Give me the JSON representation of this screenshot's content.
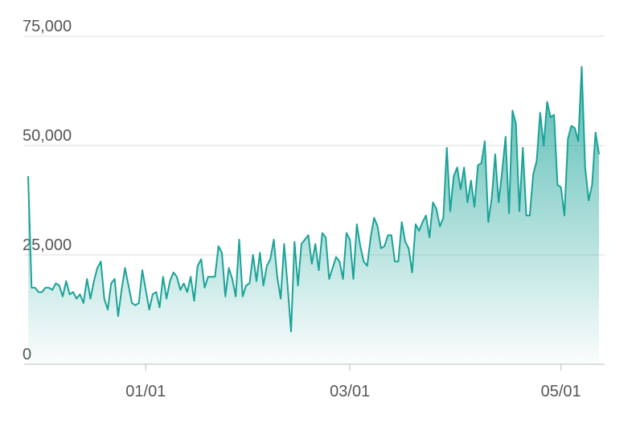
{
  "chart_data": {
    "type": "area",
    "color": "#1aa398",
    "grid": true,
    "categories": [
      null,
      null,
      null,
      null,
      null,
      null,
      null,
      null,
      null,
      null,
      null,
      null,
      null,
      null,
      null,
      null,
      null,
      null,
      null,
      null,
      null,
      null,
      null,
      null,
      null,
      null,
      null,
      null,
      null,
      null,
      null,
      null,
      null,
      null,
      "01/01",
      null,
      null,
      null,
      null,
      null,
      null,
      null,
      null,
      null,
      null,
      null,
      null,
      null,
      null,
      null,
      null,
      null,
      null,
      null,
      null,
      null,
      null,
      null,
      null,
      null,
      null,
      null,
      null,
      null,
      null,
      null,
      null,
      null,
      null,
      null,
      null,
      null,
      null,
      null,
      null,
      null,
      null,
      null,
      null,
      null,
      null,
      null,
      null,
      null,
      null,
      null,
      null,
      null,
      null,
      null,
      null,
      null,
      null,
      "03/01",
      null,
      null,
      null,
      null,
      null,
      null,
      null,
      null,
      null,
      null,
      null,
      null,
      null,
      null,
      null,
      null,
      null,
      null,
      null,
      null,
      null,
      null,
      null,
      null,
      null,
      null,
      null,
      null,
      null,
      null,
      null,
      null,
      null,
      null,
      null,
      null,
      null,
      null,
      null,
      null,
      null,
      null,
      null,
      null,
      null,
      null,
      null,
      null,
      null,
      null,
      null,
      null,
      null,
      null,
      null,
      null,
      null,
      null,
      null,
      null,
      "05/01",
      null,
      null,
      null,
      null,
      null,
      null,
      null,
      null,
      null,
      null,
      null
    ],
    "values": [
      43000,
      17500,
      17500,
      16500,
      16500,
      17500,
      17500,
      17000,
      18500,
      18000,
      15500,
      19000,
      16000,
      16500,
      15000,
      16000,
      14000,
      19500,
      15000,
      19000,
      22000,
      23500,
      15000,
      12500,
      18500,
      19500,
      11000,
      17000,
      22000,
      18000,
      14000,
      13500,
      14000,
      21500,
      17000,
      12500,
      16000,
      16500,
      13000,
      20000,
      15000,
      19000,
      21000,
      20000,
      17000,
      18500,
      16500,
      20000,
      14500,
      22500,
      24000,
      17500,
      20000,
      20000,
      20000,
      27000,
      25500,
      15500,
      22000,
      19500,
      15500,
      28500,
      15500,
      18000,
      18500,
      25000,
      19000,
      25500,
      18000,
      22500,
      24000,
      28500,
      20000,
      15000,
      27500,
      18000,
      7500,
      28000,
      18000,
      27500,
      28500,
      29500,
      23000,
      27500,
      21500,
      30000,
      29000,
      19500,
      22000,
      24500,
      23500,
      19500,
      30000,
      28500,
      19500,
      32000,
      27000,
      23500,
      22500,
      29000,
      33500,
      31500,
      26500,
      27000,
      29500,
      29500,
      23500,
      23500,
      32500,
      28000,
      26500,
      21000,
      32000,
      30500,
      32500,
      34000,
      29000,
      37000,
      35500,
      31500,
      33500,
      49500,
      35000,
      43000,
      45000,
      40000,
      45000,
      37000,
      42000,
      36000,
      45500,
      46000,
      51000,
      32500,
      38000,
      48000,
      37000,
      44000,
      52000,
      34500,
      58000,
      55000,
      35000,
      49500,
      34000,
      34000,
      43500,
      46500,
      57500,
      50000,
      60000,
      56500,
      57000,
      41000,
      40500,
      34000,
      51500,
      54500,
      54000,
      51000,
      68000,
      45000,
      37500,
      41000,
      53000,
      48000
    ],
    "ylim": [
      0,
      75000
    ],
    "yticks": [
      0,
      {
        "value": 25000,
        "label": "25,000"
      },
      {
        "value": 50000,
        "label": "50,000"
      },
      {
        "value": 75000,
        "label": "75,000"
      }
    ]
  }
}
